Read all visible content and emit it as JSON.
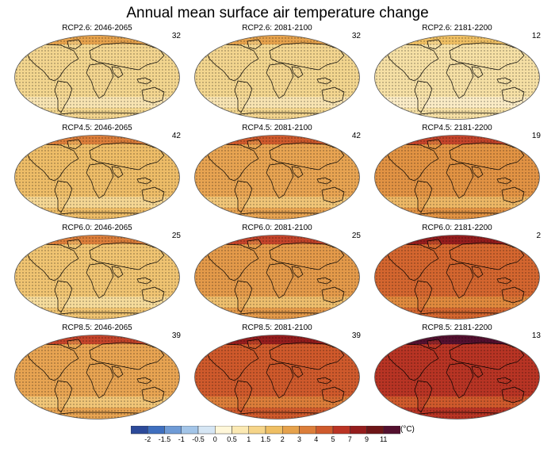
{
  "title": "Annual mean surface air temperature change",
  "unit_label": "(°C)",
  "colorbar": {
    "ticks": [
      "-2",
      "-1.5",
      "-1",
      "-0.5",
      "0",
      "0.5",
      "1",
      "1.5",
      "2",
      "3",
      "4",
      "5",
      "7",
      "9",
      "11"
    ],
    "colors": [
      "#2c4a9a",
      "#3f6fbf",
      "#6f9bd6",
      "#a3c5e8",
      "#d6e6f4",
      "#fff7d9",
      "#fbe9b3",
      "#f6d589",
      "#efbf63",
      "#e6a24c",
      "#dc7e3a",
      "#cf5a2c",
      "#bb3424",
      "#951d1d",
      "#6e1517",
      "#54102f"
    ]
  },
  "panels": [
    {
      "label": "RCP2.6: 2046-2065",
      "count": "32",
      "fill": "#f3d68f",
      "polar": "#e6a24c",
      "band": "#f8e4b2"
    },
    {
      "label": "RCP2.6: 2081-2100",
      "count": "32",
      "fill": "#f3d68f",
      "polar": "#e6a24c",
      "band": "#f8e4b2"
    },
    {
      "label": "RCP2.6: 2181-2200",
      "count": "12",
      "fill": "#f6e0a5",
      "polar": "#efbf63",
      "band": "#fbecc6"
    },
    {
      "label": "RCP4.5: 2046-2065",
      "count": "42",
      "fill": "#eebd68",
      "polar": "#dc7e3a",
      "band": "#f5d794"
    },
    {
      "label": "RCP4.5: 2081-2100",
      "count": "42",
      "fill": "#e8a452",
      "polar": "#cf5a2c",
      "band": "#f1c678"
    },
    {
      "label": "RCP4.5: 2181-2200",
      "count": "19",
      "fill": "#e29344",
      "polar": "#c4442a",
      "band": "#edb866"
    },
    {
      "label": "RCP6.0: 2046-2065",
      "count": "25",
      "fill": "#f0c472",
      "polar": "#dc7e3a",
      "band": "#f6dc9c"
    },
    {
      "label": "RCP6.0: 2081-2100",
      "count": "25",
      "fill": "#e49a4a",
      "polar": "#c4442a",
      "band": "#eebf6e"
    },
    {
      "label": "RCP6.0: 2181-2200",
      "count": "2",
      "fill": "#d4662f",
      "polar": "#951d1d",
      "band": "#e08a3e"
    },
    {
      "label": "RCP8.5: 2046-2065",
      "count": "39",
      "fill": "#e8a452",
      "polar": "#c4442a",
      "band": "#f1c678"
    },
    {
      "label": "RCP8.5: 2081-2100",
      "count": "39",
      "fill": "#cf5a2c",
      "polar": "#951d1d",
      "band": "#dc7e3a"
    },
    {
      "label": "RCP8.5: 2181-2200",
      "count": "13",
      "fill": "#b83424",
      "polar": "#54102f",
      "band": "#cf5a2c"
    }
  ]
}
